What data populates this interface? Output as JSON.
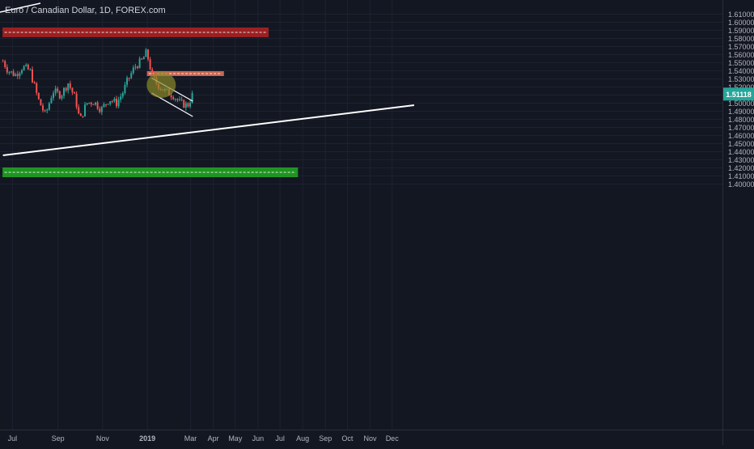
{
  "title": "Euro / Canadian Dollar, 1D, FOREX.com",
  "last_price": "1.51118",
  "colors": {
    "background": "#131722",
    "grid": "#1e2230",
    "up": "#26a69a",
    "down": "#ef5350",
    "text": "#b2b5be",
    "resistance": "#b22222",
    "support": "#22aa22",
    "trendline": "#ffffff",
    "price_label": "#26a69a"
  },
  "chart_data": {
    "type": "candlestick",
    "title": "Euro / Canadian Dollar, 1D, FOREX.com",
    "x_ticks": [
      "Jul",
      "Sep",
      "Nov",
      "2019",
      "Mar",
      "Apr",
      "May",
      "Jun",
      "Jul",
      "Aug",
      "Sep",
      "Oct",
      "Nov",
      "Dec"
    ],
    "y_ticks": [
      "1.61000",
      "1.60000",
      "1.59000",
      "1.58000",
      "1.57000",
      "1.56000",
      "1.55000",
      "1.54000",
      "1.53000",
      "1.52000",
      "1.51000",
      "1.50000",
      "1.49000",
      "1.48000",
      "1.47000",
      "1.46000",
      "1.45000",
      "1.44000",
      "1.43000",
      "1.42000",
      "1.41000",
      "1.40000"
    ],
    "ylim": [
      1.4,
      1.615
    ],
    "x_axis": "time (2018-06 to 2019-12)",
    "current_price": 1.51118,
    "close_path": [
      {
        "date": "2018-06-18",
        "close": 1.552
      },
      {
        "date": "2018-06-25",
        "close": 1.54
      },
      {
        "date": "2018-07-05",
        "close": 1.535
      },
      {
        "date": "2018-07-15",
        "close": 1.545
      },
      {
        "date": "2018-07-25",
        "close": 1.54
      },
      {
        "date": "2018-08-05",
        "close": 1.505
      },
      {
        "date": "2018-08-15",
        "close": 1.485
      },
      {
        "date": "2018-08-25",
        "close": 1.515
      },
      {
        "date": "2018-09-05",
        "close": 1.51
      },
      {
        "date": "2018-09-15",
        "close": 1.525
      },
      {
        "date": "2018-09-25",
        "close": 1.505
      },
      {
        "date": "2018-10-01",
        "close": 1.478
      },
      {
        "date": "2018-10-10",
        "close": 1.5
      },
      {
        "date": "2018-10-20",
        "close": 1.502
      },
      {
        "date": "2018-10-30",
        "close": 1.492
      },
      {
        "date": "2018-11-10",
        "close": 1.505
      },
      {
        "date": "2018-11-20",
        "close": 1.5
      },
      {
        "date": "2018-11-28",
        "close": 1.512
      },
      {
        "date": "2018-12-05",
        "close": 1.528
      },
      {
        "date": "2018-12-15",
        "close": 1.545
      },
      {
        "date": "2018-12-25",
        "close": 1.553
      },
      {
        "date": "2018-12-31",
        "close": 1.563
      },
      {
        "date": "2019-01-04",
        "close": 1.548
      },
      {
        "date": "2019-01-08",
        "close": 1.532
      },
      {
        "date": "2019-01-15",
        "close": 1.523
      },
      {
        "date": "2019-01-25",
        "close": 1.515
      },
      {
        "date": "2019-02-05",
        "close": 1.51
      },
      {
        "date": "2019-02-15",
        "close": 1.5
      },
      {
        "date": "2019-02-25",
        "close": 1.497
      },
      {
        "date": "2019-03-04",
        "close": 1.511
      }
    ],
    "levels": [
      {
        "name": "resistance zone",
        "value": 1.5875,
        "color": "#b22222",
        "from": "2018-06-18",
        "to": "2019-06-15"
      },
      {
        "name": "minor resistance",
        "value": 1.5365,
        "color": "#e8735a",
        "from": "2019-01-01",
        "to": "2019-04-15"
      },
      {
        "name": "support zone",
        "value": 1.4145,
        "color": "#22aa22",
        "from": "2018-06-18",
        "to": "2019-07-25"
      }
    ],
    "trendlines": [
      {
        "name": "rising trendline",
        "points": [
          [
            "2018-06-18",
            1.4355
          ],
          [
            "2019-12-31",
            1.4975
          ]
        ]
      },
      {
        "name": "channel upper",
        "points": [
          [
            "2019-01-07",
            1.531
          ],
          [
            "2019-03-04",
            1.5025
          ]
        ]
      },
      {
        "name": "channel lower",
        "points": [
          [
            "2019-01-07",
            1.5125
          ],
          [
            "2019-03-04",
            1.4835
          ]
        ]
      }
    ],
    "highlight": {
      "name": "circle",
      "center": [
        "2019-01-20",
        1.5225
      ],
      "color": "#8a8a2a"
    },
    "grid": true
  }
}
